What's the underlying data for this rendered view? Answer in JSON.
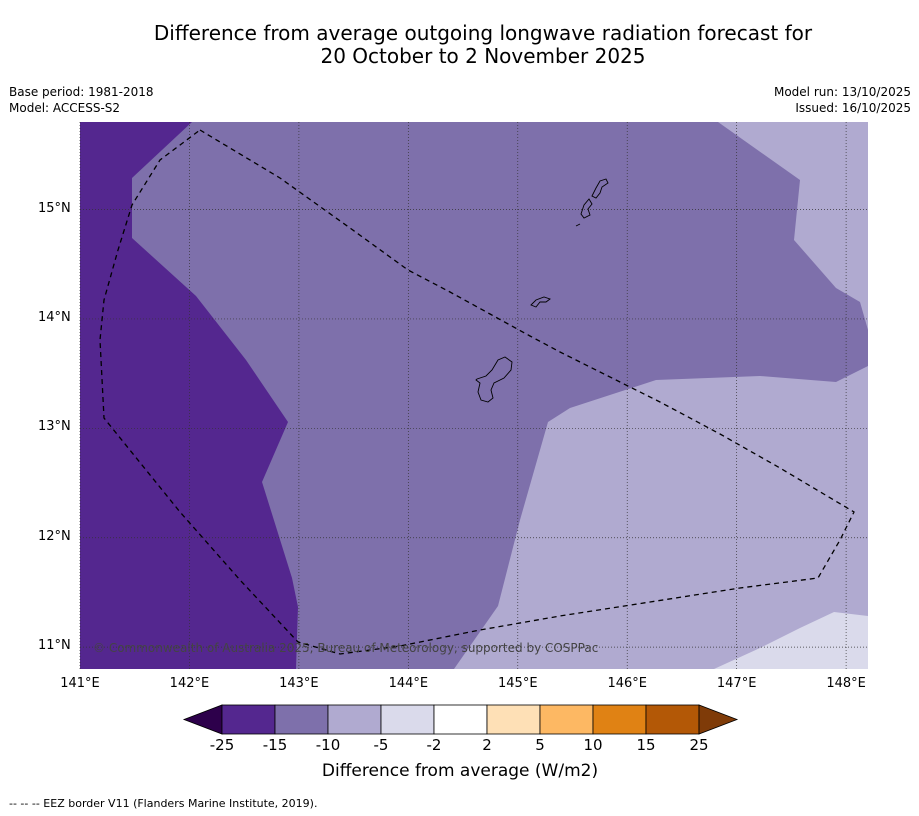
{
  "title": {
    "line1": "Difference from average outgoing longwave radiation forecast for",
    "line2": "20 October to 2 November 2025"
  },
  "meta": {
    "base_period": "Base period: 1981-2018",
    "model": "Model: ACCESS-S2",
    "model_run": "Model run: 13/10/2025",
    "issued": "Issued: 16/10/2025"
  },
  "map": {
    "lon_range": [
      141,
      148.2
    ],
    "lat_range": [
      10.8,
      15.8
    ],
    "lon_ticks": [
      "141°E",
      "142°E",
      "143°E",
      "144°E",
      "145°E",
      "146°E",
      "147°E",
      "148°E"
    ],
    "lat_ticks": [
      "15°N",
      "14°N",
      "13°N",
      "12°N",
      "11°N"
    ],
    "copyright": "© Commonwealth of Australia 2025, Bureau of Meteorology, supported by COSPPac",
    "islands": [
      "Guam",
      "Rota",
      "Tinian",
      "Saipan"
    ],
    "zones": [
      {
        "class": "-25 to -15",
        "color": "#54278f"
      },
      {
        "class": "-15 to -10",
        "color": "#7e70ab"
      },
      {
        "class": "-10 to -5",
        "color": "#b0aad0"
      },
      {
        "class": "-5 to -2",
        "color": "#dadaeb"
      }
    ]
  },
  "colorbar": {
    "title": "Difference from average (W/m2)",
    "labels": [
      "-25",
      "-15",
      "-10",
      "-5",
      "-2",
      "2",
      "5",
      "10",
      "15",
      "25"
    ],
    "colors": [
      "#2d004b",
      "#54278f",
      "#7e70ab",
      "#b0aad0",
      "#dadaeb",
      "#ffffff",
      "#fee0b6",
      "#fdb863",
      "#e08214",
      "#b35806",
      "#7f3b08"
    ]
  },
  "footnote": "--  --  -- EEZ border V11 (Flanders Marine Institute, 2019)."
}
